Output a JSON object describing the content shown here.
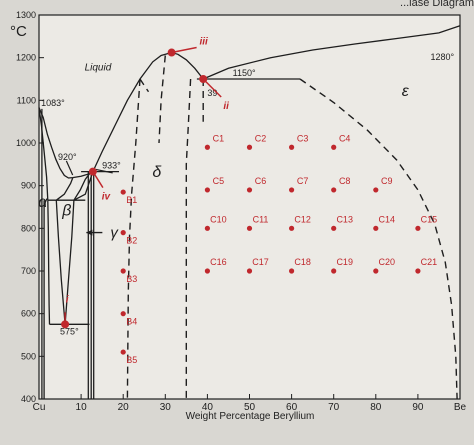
{
  "header_fragment": "...iase Diagram",
  "chart_data": {
    "type": "phase-diagram",
    "title": "",
    "xlabel": "Weight Percentage Beryllium",
    "ylabel": "°C",
    "xlim": [
      0,
      100
    ],
    "ylim": [
      400,
      1300
    ],
    "x_ticks": [
      {
        "v": 0,
        "label": "Cu"
      },
      {
        "v": 10,
        "label": "10"
      },
      {
        "v": 20,
        "label": "20"
      },
      {
        "v": 30,
        "label": "30"
      },
      {
        "v": 40,
        "label": "40"
      },
      {
        "v": 50,
        "label": "50"
      },
      {
        "v": 60,
        "label": "60"
      },
      {
        "v": 70,
        "label": "70"
      },
      {
        "v": 80,
        "label": "80"
      },
      {
        "v": 90,
        "label": "90"
      },
      {
        "v": 100,
        "label": "Be"
      }
    ],
    "y_ticks": [
      400,
      500,
      600,
      700,
      800,
      900,
      1000,
      1100,
      1200,
      1300
    ],
    "grid": false,
    "phase_labels": [
      {
        "text": "Liquid",
        "x": 14,
        "y": 1170,
        "italic": true
      },
      {
        "text": "α",
        "x": 0.9,
        "y": 850,
        "italic": true
      },
      {
        "text": "β",
        "x": 6.6,
        "y": 830,
        "italic": true
      },
      {
        "text": "δ",
        "x": 28,
        "y": 920,
        "italic": true
      },
      {
        "text": "ε",
        "x": 87,
        "y": 1110,
        "italic": true
      }
    ],
    "gamma_label": "γ",
    "temperature_labels": [
      {
        "text": "1083°",
        "x": 0.5,
        "y": 1087
      },
      {
        "text": "920°",
        "x": 4.5,
        "y": 960
      },
      {
        "text": "933°",
        "x": 15,
        "y": 940
      },
      {
        "text": "1150°",
        "x": 46,
        "y": 1157
      },
      {
        "text": "1280°",
        "x": 93,
        "y": 1195
      },
      {
        "text": "39",
        "x": 40,
        "y": 1110
      },
      {
        "text": "575°",
        "x": 5,
        "y": 551
      }
    ],
    "special_points": [
      {
        "id": "i",
        "x": 6.2,
        "y": 575
      },
      {
        "id": "ii",
        "x": 39,
        "y": 1150
      },
      {
        "id": "iii",
        "x": 31.5,
        "y": 1212
      },
      {
        "id": "iv",
        "x": 12.8,
        "y": 933
      }
    ],
    "sample_points": [
      {
        "label": "B1",
        "x": 20,
        "y": 885
      },
      {
        "label": "B2",
        "x": 20,
        "y": 790
      },
      {
        "label": "B3",
        "x": 20,
        "y": 700
      },
      {
        "label": "B4",
        "x": 20,
        "y": 600
      },
      {
        "label": "B5",
        "x": 20,
        "y": 510
      },
      {
        "label": "C1",
        "x": 40,
        "y": 990
      },
      {
        "label": "C2",
        "x": 50,
        "y": 990
      },
      {
        "label": "C3",
        "x": 60,
        "y": 990
      },
      {
        "label": "C4",
        "x": 70,
        "y": 990
      },
      {
        "label": "C5",
        "x": 40,
        "y": 890
      },
      {
        "label": "C6",
        "x": 50,
        "y": 890
      },
      {
        "label": "C7",
        "x": 60,
        "y": 890
      },
      {
        "label": "C8",
        "x": 70,
        "y": 890
      },
      {
        "label": "C9",
        "x": 80,
        "y": 890
      },
      {
        "label": "C10",
        "x": 40,
        "y": 800
      },
      {
        "label": "C11",
        "x": 50,
        "y": 800
      },
      {
        "label": "C12",
        "x": 60,
        "y": 800
      },
      {
        "label": "C13",
        "x": 70,
        "y": 800
      },
      {
        "label": "C14",
        "x": 80,
        "y": 800
      },
      {
        "label": "C15",
        "x": 90,
        "y": 800
      },
      {
        "label": "C16",
        "x": 40,
        "y": 700
      },
      {
        "label": "C17",
        "x": 50,
        "y": 700
      },
      {
        "label": "C18",
        "x": 60,
        "y": 700
      },
      {
        "label": "C19",
        "x": 70,
        "y": 700
      },
      {
        "label": "C20",
        "x": 80,
        "y": 700
      },
      {
        "label": "C21",
        "x": 90,
        "y": 700
      }
    ],
    "solid_lines": [
      {
        "name": "liquidus-cu",
        "points": [
          [
            0,
            1083
          ],
          [
            1,
            1060
          ],
          [
            2,
            1020
          ],
          [
            3,
            990
          ],
          [
            4,
            962
          ],
          [
            5,
            940
          ],
          [
            6,
            924
          ],
          [
            7,
            918
          ],
          [
            8,
            919
          ],
          [
            10,
            922
          ],
          [
            12,
            928
          ],
          [
            12.8,
            933
          ]
        ]
      },
      {
        "name": "solidus-alpha",
        "points": [
          [
            0,
            1083
          ],
          [
            0.6,
            1040
          ],
          [
            1.2,
            980
          ],
          [
            1.8,
            920
          ],
          [
            2.1,
            866
          ]
        ]
      },
      {
        "name": "liquidus-beta-delta",
        "points": [
          [
            12.8,
            933
          ],
          [
            15,
            980
          ],
          [
            18,
            1040
          ],
          [
            21,
            1100
          ],
          [
            24,
            1150
          ],
          [
            27,
            1190
          ],
          [
            29,
            1205
          ],
          [
            31.5,
            1212
          ],
          [
            33,
            1208
          ],
          [
            35,
            1195
          ],
          [
            37,
            1175
          ],
          [
            39,
            1150
          ]
        ]
      },
      {
        "name": "liquidus-epsilon",
        "points": [
          [
            39,
            1150
          ],
          [
            45,
            1175
          ],
          [
            55,
            1200
          ],
          [
            65,
            1218
          ],
          [
            75,
            1232
          ],
          [
            85,
            1245
          ],
          [
            95,
            1258
          ],
          [
            100,
            1275
          ]
        ]
      },
      {
        "name": "peritectic-1150",
        "points": [
          [
            37.5,
            1150
          ],
          [
            62,
            1150
          ]
        ]
      },
      {
        "name": "eutectic-920",
        "points": [
          [
            2.1,
            866
          ],
          [
            11,
            866
          ]
        ]
      },
      {
        "name": "peritectic-933",
        "points": [
          [
            10,
            933
          ],
          [
            19,
            933
          ]
        ]
      },
      {
        "name": "alpha-solvus",
        "points": [
          [
            2.1,
            866
          ],
          [
            2.2,
            800
          ],
          [
            2.3,
            700
          ],
          [
            2.4,
            620
          ],
          [
            2.5,
            575
          ]
        ]
      },
      {
        "name": "beta-left",
        "points": [
          [
            4.1,
            866
          ],
          [
            4.6,
            780
          ],
          [
            5.3,
            680
          ],
          [
            6.2,
            575
          ]
        ]
      },
      {
        "name": "beta-right",
        "points": [
          [
            8.3,
            866
          ],
          [
            7.8,
            780
          ],
          [
            7,
            680
          ],
          [
            6.2,
            575
          ]
        ]
      },
      {
        "name": "beta-top-left",
        "points": [
          [
            4.1,
            866
          ],
          [
            6,
            880
          ],
          [
            7.5,
            905
          ],
          [
            8,
            918
          ]
        ]
      },
      {
        "name": "beta-top-right",
        "points": [
          [
            8.3,
            866
          ],
          [
            9.8,
            890
          ],
          [
            11,
            915
          ],
          [
            12,
            928
          ]
        ]
      },
      {
        "name": "beta-to-gamma",
        "points": [
          [
            8.3,
            866
          ],
          [
            11,
            880
          ],
          [
            12.8,
            933
          ]
        ]
      },
      {
        "name": "eutectoid-575",
        "points": [
          [
            2.5,
            575
          ],
          [
            12,
            575
          ]
        ]
      },
      {
        "name": "gamma-left",
        "points": [
          [
            11.7,
            933
          ],
          [
            11.7,
            400
          ]
        ]
      },
      {
        "name": "gamma-right",
        "points": [
          [
            13,
            933
          ],
          [
            13,
            400
          ]
        ]
      },
      {
        "name": "gamma-2",
        "points": [
          [
            12.4,
            933
          ],
          [
            12.4,
            400
          ]
        ]
      },
      {
        "name": "alpha-left-vert",
        "points": [
          [
            1.2,
            866
          ],
          [
            1.2,
            400
          ]
        ]
      },
      {
        "name": "cu-axis-vert",
        "points": [
          [
            0.7,
            1080
          ],
          [
            0.7,
            400
          ]
        ]
      }
    ],
    "dashed_lines": [
      {
        "name": "delta-left",
        "points": [
          [
            24,
            1150
          ],
          [
            23,
            1000
          ],
          [
            22,
            880
          ],
          [
            21.5,
            780
          ],
          [
            21.2,
            650
          ],
          [
            21,
            400
          ]
        ]
      },
      {
        "name": "delta-right",
        "points": [
          [
            36,
            1150
          ],
          [
            35.5,
            1050
          ],
          [
            35,
            950
          ],
          [
            35,
            800
          ],
          [
            35,
            650
          ],
          [
            35,
            400
          ]
        ]
      },
      {
        "name": "delta-inner",
        "points": [
          [
            30,
            1205
          ],
          [
            29,
            1100
          ],
          [
            28.5,
            1000
          ]
        ]
      },
      {
        "name": "epsilon-boundary",
        "points": [
          [
            62,
            1150
          ],
          [
            70,
            1095
          ],
          [
            78,
            1030
          ],
          [
            85,
            960
          ],
          [
            90,
            890
          ],
          [
            94,
            810
          ],
          [
            96.5,
            720
          ],
          [
            98,
            620
          ],
          [
            99,
            500
          ],
          [
            99.3,
            400
          ]
        ]
      },
      {
        "name": "delta-left-upper",
        "points": [
          [
            24,
            1150
          ],
          [
            26,
            1120
          ]
        ]
      },
      {
        "name": "epsilon-left",
        "points": [
          [
            39,
            1150
          ],
          [
            39,
            1050
          ]
        ]
      }
    ],
    "line_color": "#1e1e1e",
    "point_color": "#c0282d",
    "label_color": "#c0282d"
  }
}
